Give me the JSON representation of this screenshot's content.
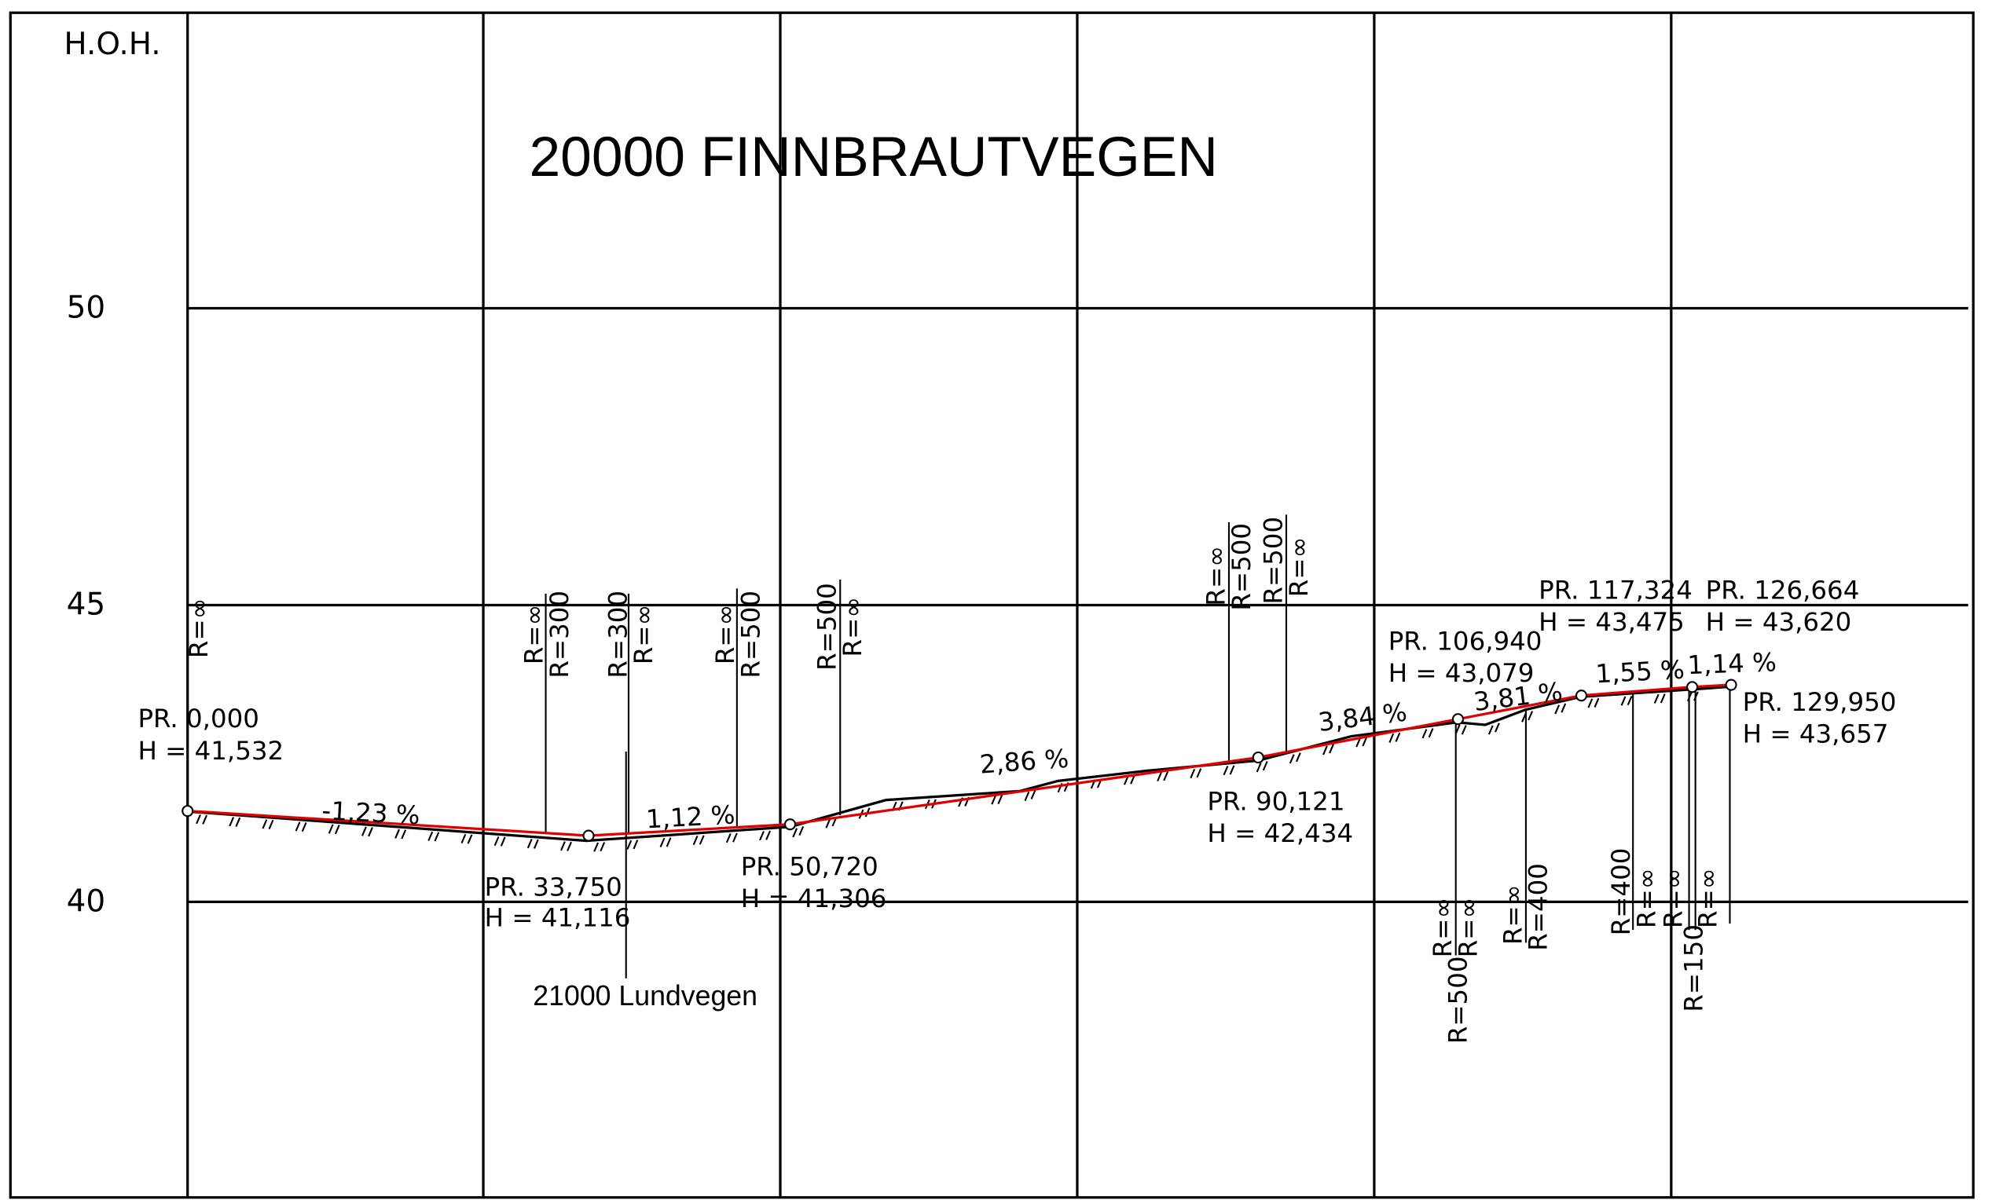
{
  "axis": {
    "label": "H.O.H.",
    "ticks": [
      "50",
      "45",
      "40"
    ]
  },
  "title": "20000 FINNBRAUTVEGEN",
  "grades": [
    "-1,23 %",
    "1,12 %",
    "2,86 %",
    "3,84 %",
    "3,81 %",
    "1,55 %",
    "1,14 %"
  ],
  "points": [
    {
      "station": "PR. 0,000",
      "height": "H = 41,532"
    },
    {
      "station": "PR. 33,750",
      "height": "H = 41,116"
    },
    {
      "station": "PR. 50,720",
      "height": "H = 41,306"
    },
    {
      "station": "PR. 90,121",
      "height": "H = 42,434"
    },
    {
      "station": "PR. 106,940",
      "height": "H = 43,079"
    },
    {
      "station": "PR. 117,324",
      "height": "H = 43,475"
    },
    {
      "station": "PR. 126,664",
      "height": "H = 43,620"
    },
    {
      "station": "PR. 129,950",
      "height": "H = 43,657"
    }
  ],
  "radii": [
    "R=∞",
    "R=∞",
    "R=300",
    "R=300",
    "R=∞",
    "R=∞",
    "R=500",
    "R=500",
    "R=∞",
    "R=∞",
    "R=500",
    "R=500",
    "R=∞",
    "R=∞",
    "R=∞",
    "R=500",
    "R=∞",
    "R=400",
    "R=400",
    "R=∞",
    "R=∞",
    "R=∞",
    "R=150"
  ],
  "crossing": "21000 Lundvegen"
}
